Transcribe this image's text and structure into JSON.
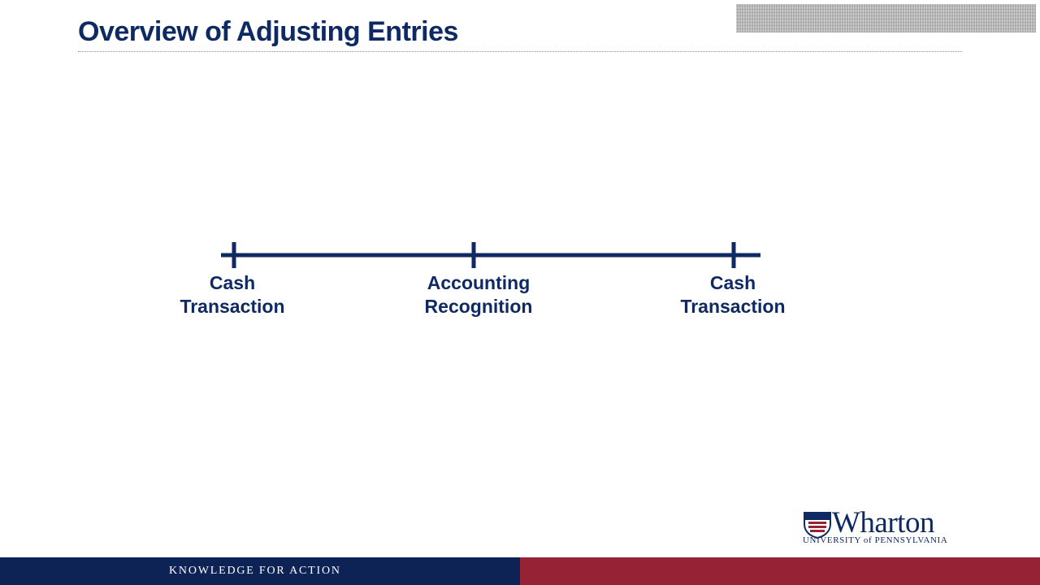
{
  "slide": {
    "title": "Overview of Adjusting Entries"
  },
  "timeline": {
    "points": [
      {
        "label": "Cash\nTransaction"
      },
      {
        "label": "Accounting\nRecognition"
      },
      {
        "label": "Cash\nTransaction"
      }
    ]
  },
  "logo": {
    "wordmark": "Wharton",
    "subtitle": "UNIVERSITY of PENNSYLVANIA"
  },
  "footer": {
    "tagline": "KNOWLEDGE FOR ACTION"
  },
  "colors": {
    "navy": "#0f2a63",
    "footer_navy": "#0d2356",
    "footer_red": "#962335",
    "shield_red": "#962335"
  }
}
